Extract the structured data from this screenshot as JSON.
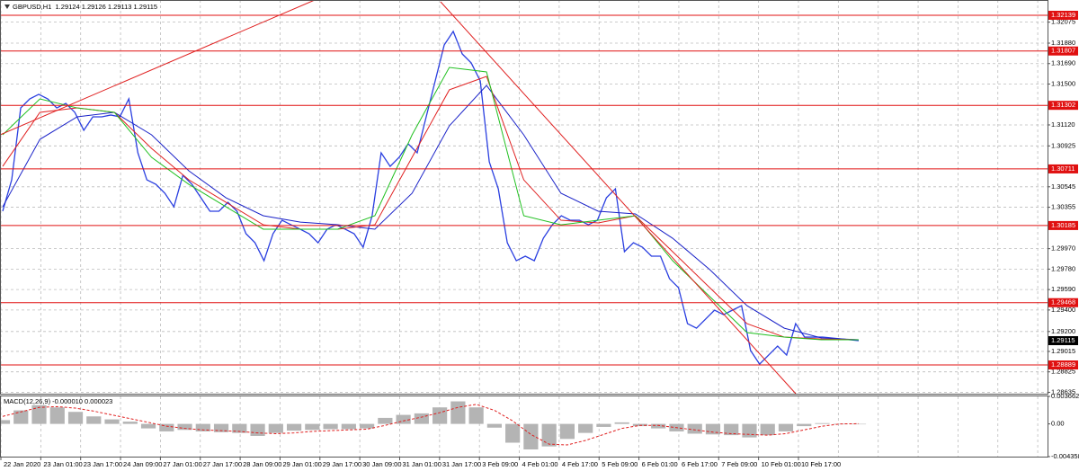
{
  "chart_data": [
    {
      "type": "line",
      "title": "GBPUSD,H1  1.29124 1.29126 1.29113 1.29115",
      "xtick_labels": [
        "22 Jan 2020",
        "23 Jan 01:00",
        "23 Jan 17:00",
        "24 Jan 09:00",
        "27 Jan 01:00",
        "27 Jan 17:00",
        "28 Jan 09:00",
        "29 Jan 01:00",
        "29 Jan 17:00",
        "30 Jan 09:00",
        "31 Jan 01:00",
        "31 Jan 17:00",
        "3 Feb 09:00",
        "4 Feb 01:00",
        "4 Feb 17:00",
        "5 Feb 09:00",
        "6 Feb 01:00",
        "6 Feb 17:00",
        "7 Feb 09:00",
        "10 Feb 01:00",
        "10 Feb 17:00"
      ],
      "ylim": [
        1.28622,
        1.32281
      ],
      "yticks": [
        1.32075,
        {
          "value": 1.3188,
          "label": "1.31880"
        },
        {
          "value": 1.3169,
          "label": "1.31690"
        },
        {
          "value": 1.315,
          "label": "1.31500"
        },
        {
          "value": 1.3112,
          "label": "1.31120"
        },
        1.30925,
        1.30545,
        1.30355,
        {
          "value": 1.2997,
          "label": "1.29970"
        },
        {
          "value": 1.2978,
          "label": "1.29780"
        },
        {
          "value": 1.2959,
          "label": "1.29590"
        },
        {
          "value": 1.294,
          "label": "1.29400"
        },
        {
          "value": 1.292,
          "label": "1.29200"
        },
        1.29015,
        1.28825,
        1.28635
      ],
      "grid": true,
      "levels": [
        1.32139,
        1.31807,
        1.31302,
        1.30711,
        1.30185,
        1.29468,
        1.28889
      ],
      "level_color": "#e01010",
      "last": 1.29115,
      "series": [
        {
          "type": "line",
          "color": "#2a3fe0",
          "width": 1.3,
          "values": [
            1.30318,
            1.3061,
            1.31278,
            1.31362,
            1.31404,
            1.31362,
            1.31278,
            1.3132,
            1.31237,
            1.3107,
            1.31195,
            1.31195,
            1.31212,
            1.31195,
            1.31362,
            1.30861,
            1.3061,
            1.30568,
            1.30485,
            1.30359,
            1.30652,
            1.30568,
            1.30443,
            1.30318,
            1.30318,
            1.30401,
            1.30318,
            1.30109,
            1.30025,
            1.29858,
            1.30109,
            1.30234,
            1.30192,
            1.30151,
            1.30109,
            1.30025,
            1.30151,
            1.30192,
            1.30151,
            1.30109,
            1.29983,
            1.30276,
            1.30861,
            1.30735,
            1.30819,
            1.30944,
            1.30861,
            1.31195,
            1.31529,
            1.31863,
            1.31989,
            1.3178,
            1.31696,
            1.31529,
            1.30777,
            1.30526,
            1.30025,
            1.29858,
            1.299,
            1.29858,
            1.30067,
            1.30192,
            1.30276,
            1.30234,
            1.30234,
            1.30192,
            1.30234,
            1.30443,
            1.30526,
            1.29942,
            1.30025,
            1.29983,
            1.299,
            1.299,
            1.29691,
            1.29607,
            1.29273,
            1.29231,
            1.29315,
            1.29399,
            1.29357,
            1.29399,
            1.2944,
            1.29023,
            1.28897,
            1.28981,
            1.29064,
            1.28981,
            1.29273,
            1.29148,
            1.29148,
            1.29148,
            1.2914,
            1.29131,
            1.29123,
            1.29115
          ]
        },
        {
          "type": "line",
          "color": "#1a22c8",
          "width": 1,
          "values": [
            1.30359,
            1.30986,
            1.31195,
            1.31237,
            1.31028,
            1.30694,
            1.30443,
            1.30276,
            1.30217,
            1.30192,
            1.30151,
            1.30485,
            1.31111,
            1.31487,
            1.31028,
            1.30485,
            1.30318,
            1.30293,
            1.30067,
            1.29775,
            1.2944,
            1.29231,
            1.2914,
            1.29123
          ]
        },
        {
          "type": "line",
          "color": "#e02020",
          "width": 1,
          "values": [
            1.30735,
            1.31237,
            1.31278,
            1.31237,
            1.30902,
            1.3061,
            1.30401,
            1.30192,
            1.30151,
            1.30151,
            1.30192,
            1.30819,
            1.31446,
            1.31571,
            1.3061,
            1.30234,
            1.30209,
            1.30276,
            1.29942,
            1.29607,
            1.29273,
            1.29148,
            1.29131,
            1.29123
          ]
        },
        {
          "type": "line",
          "color": "#20c020",
          "width": 1,
          "values": [
            1.31028,
            1.31362,
            1.31278,
            1.31237,
            1.30819,
            1.30568,
            1.30359,
            1.30151,
            1.30151,
            1.30151,
            1.30276,
            1.31028,
            1.31654,
            1.31613,
            1.30276,
            1.30192,
            1.30234,
            1.30276,
            1.29858,
            1.29524,
            1.2919,
            1.29148,
            1.29123,
            1.29123
          ]
        }
      ]
    },
    {
      "type": "bar",
      "title": "MACD(12,26,9) -0.000010 0.000023",
      "ylim": [
        -0.004358,
        0.003662
      ],
      "yticks": [
        0.003662,
        {
          "value": 0,
          "label": "0.00"
        },
        -0.004358
      ],
      "grid": false,
      "series": [
        {
          "type": "bar",
          "color": "#b4b4b4",
          "values": [
            0.0005,
            0.0018,
            0.0025,
            0.0022,
            0.0016,
            0.001,
            0.0006,
            0.0003,
            -0.0006,
            -0.001,
            -0.0008,
            -0.001,
            -0.0011,
            -0.0012,
            -0.0016,
            -0.0012,
            -0.0009,
            -0.0008,
            -0.0007,
            -0.0007,
            -0.0006,
            0.0008,
            0.0012,
            0.0014,
            0.0022,
            0.003,
            0.0022,
            -0.0005,
            -0.0025,
            -0.0034,
            -0.003,
            -0.002,
            -0.0012,
            -0.0004,
            0.0002,
            -0.0003,
            -0.0006,
            -0.001,
            -0.0013,
            -0.0014,
            -0.0015,
            -0.0018,
            -0.0015,
            -0.001,
            -0.0003,
            0.0001,
            0,
            -1e-05
          ]
        },
        {
          "type": "line",
          "color": "#e02020",
          "width": 1,
          "dashed": true,
          "values": [
            0.001,
            0.0016,
            0.0022,
            0.0023,
            0.0021,
            0.0017,
            0.0012,
            0.0007,
            0.0002,
            -0.0003,
            -0.0006,
            -0.0008,
            -0.0009,
            -0.001,
            -0.0012,
            -0.0013,
            -0.0012,
            -0.001,
            -0.0009,
            -0.0008,
            -0.0007,
            -0.0002,
            0.0004,
            0.0009,
            0.0015,
            0.0022,
            0.0026,
            0.0018,
            0.0004,
            -0.0014,
            -0.0027,
            -0.0028,
            -0.0022,
            -0.0014,
            -0.0006,
            -0.0002,
            -0.0002,
            -0.0005,
            -0.0008,
            -0.0011,
            -0.0013,
            -0.0014,
            -0.0015,
            -0.0013,
            -0.0008,
            -0.0003,
            0,
            2.3e-05
          ]
        }
      ]
    }
  ]
}
